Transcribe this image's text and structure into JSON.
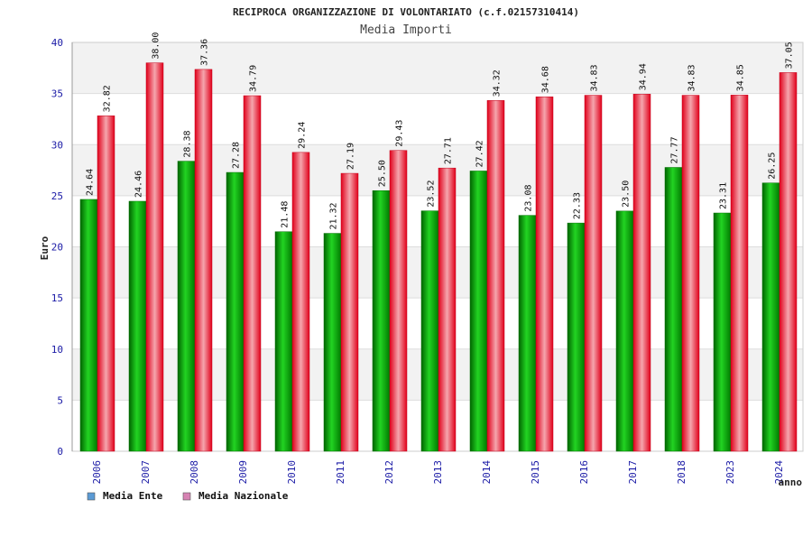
{
  "chart_data": {
    "type": "bar",
    "title": "RECIPROCA ORGANIZZAZIONE DI VOLONTARIATO (c.f.02157310414)",
    "subtitle": "Media Importi",
    "xlabel": "anno",
    "ylabel": "Euro",
    "ylim": [
      0,
      40
    ],
    "yticks": [
      0,
      5,
      10,
      15,
      20,
      25,
      30,
      35,
      40
    ],
    "grid": true,
    "legend_position": "bottom-left",
    "categories": [
      "2006",
      "2007",
      "2008",
      "2009",
      "2010",
      "2011",
      "2012",
      "2013",
      "2014",
      "2015",
      "2016",
      "2017",
      "2018",
      "2023",
      "2024"
    ],
    "series": [
      {
        "name": "Media Ente",
        "color": "#00a000",
        "legend_color": "#5b9bd5",
        "values": [
          24.64,
          24.46,
          28.38,
          27.28,
          21.48,
          21.32,
          25.5,
          23.52,
          27.42,
          23.08,
          22.33,
          23.5,
          27.77,
          23.31,
          26.25
        ],
        "labels": [
          "24.64",
          "24.46",
          "28.38",
          "27.28",
          "21.48",
          "21.32",
          "25.50",
          "23.52",
          "27.42",
          "23.08",
          "22.33",
          "23.50",
          "27.77",
          "23.31",
          "26.25"
        ]
      },
      {
        "name": "Media Nazionale",
        "color": "#e8202c",
        "legend_color": "#d783b3",
        "values": [
          32.82,
          38.0,
          37.36,
          34.79,
          29.24,
          27.19,
          29.43,
          27.71,
          34.32,
          34.68,
          34.83,
          34.94,
          34.83,
          34.85,
          37.05
        ],
        "labels": [
          "32.82",
          "38.00",
          "37.36",
          "34.79",
          "29.24",
          "27.19",
          "29.43",
          "27.71",
          "34.32",
          "34.68",
          "34.83",
          "34.94",
          "34.83",
          "34.85",
          "37.05"
        ]
      }
    ]
  }
}
